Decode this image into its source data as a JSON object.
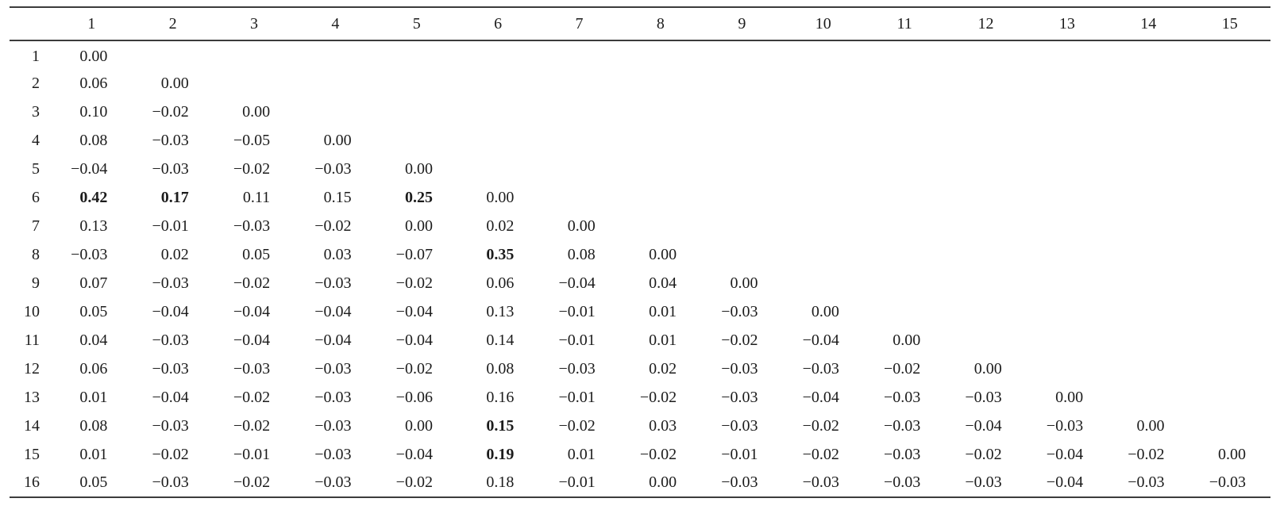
{
  "style": {
    "rule_color": "#3c3c3c",
    "text_color": "#1c1c1c",
    "background": "#ffffff"
  },
  "table": {
    "corner_label": "",
    "columns": [
      "1",
      "2",
      "3",
      "4",
      "5",
      "6",
      "7",
      "8",
      "9",
      "10",
      "11",
      "12",
      "13",
      "14",
      "15"
    ],
    "rows": [
      {
        "label": "1",
        "values": [
          "0.00"
        ],
        "bold_columns": []
      },
      {
        "label": "2",
        "values": [
          "0.06",
          "0.00"
        ],
        "bold_columns": []
      },
      {
        "label": "3",
        "values": [
          "0.10",
          "−0.02",
          "0.00"
        ],
        "bold_columns": []
      },
      {
        "label": "4",
        "values": [
          "0.08",
          "−0.03",
          "−0.05",
          "0.00"
        ],
        "bold_columns": []
      },
      {
        "label": "5",
        "values": [
          "−0.04",
          "−0.03",
          "−0.02",
          "−0.03",
          "0.00"
        ],
        "bold_columns": []
      },
      {
        "label": "6",
        "values": [
          "0.42",
          "0.17",
          "0.11",
          "0.15",
          "0.25",
          "0.00"
        ],
        "bold_columns": [
          1,
          2,
          5
        ]
      },
      {
        "label": "7",
        "values": [
          "0.13",
          "−0.01",
          "−0.03",
          "−0.02",
          "0.00",
          "0.02",
          "0.00"
        ],
        "bold_columns": []
      },
      {
        "label": "8",
        "values": [
          "−0.03",
          "0.02",
          "0.05",
          "0.03",
          "−0.07",
          "0.35",
          "0.08",
          "0.00"
        ],
        "bold_columns": [
          6
        ]
      },
      {
        "label": "9",
        "values": [
          "0.07",
          "−0.03",
          "−0.02",
          "−0.03",
          "−0.02",
          "0.06",
          "−0.04",
          "0.04",
          "0.00"
        ],
        "bold_columns": []
      },
      {
        "label": "10",
        "values": [
          "0.05",
          "−0.04",
          "−0.04",
          "−0.04",
          "−0.04",
          "0.13",
          "−0.01",
          "0.01",
          "−0.03",
          "0.00"
        ],
        "bold_columns": []
      },
      {
        "label": "11",
        "values": [
          "0.04",
          "−0.03",
          "−0.04",
          "−0.04",
          "−0.04",
          "0.14",
          "−0.01",
          "0.01",
          "−0.02",
          "−0.04",
          "0.00"
        ],
        "bold_columns": []
      },
      {
        "label": "12",
        "values": [
          "0.06",
          "−0.03",
          "−0.03",
          "−0.03",
          "−0.02",
          "0.08",
          "−0.03",
          "0.02",
          "−0.03",
          "−0.03",
          "−0.02",
          "0.00"
        ],
        "bold_columns": []
      },
      {
        "label": "13",
        "values": [
          "0.01",
          "−0.04",
          "−0.02",
          "−0.03",
          "−0.06",
          "0.16",
          "−0.01",
          "−0.02",
          "−0.03",
          "−0.04",
          "−0.03",
          "−0.03",
          "0.00"
        ],
        "bold_columns": []
      },
      {
        "label": "14",
        "values": [
          "0.08",
          "−0.03",
          "−0.02",
          "−0.03",
          "0.00",
          "0.15",
          "−0.02",
          "0.03",
          "−0.03",
          "−0.02",
          "−0.03",
          "−0.04",
          "−0.03",
          "0.00"
        ],
        "bold_columns": [
          6
        ]
      },
      {
        "label": "15",
        "values": [
          "0.01",
          "−0.02",
          "−0.01",
          "−0.03",
          "−0.04",
          "0.19",
          "0.01",
          "−0.02",
          "−0.01",
          "−0.02",
          "−0.03",
          "−0.02",
          "−0.04",
          "−0.02",
          "0.00"
        ],
        "bold_columns": [
          6
        ]
      },
      {
        "label": "16",
        "values": [
          "0.05",
          "−0.03",
          "−0.02",
          "−0.03",
          "−0.02",
          "0.18",
          "−0.01",
          "0.00",
          "−0.03",
          "−0.03",
          "−0.03",
          "−0.03",
          "−0.04",
          "−0.03",
          "−0.03"
        ],
        "bold_columns": []
      }
    ]
  }
}
